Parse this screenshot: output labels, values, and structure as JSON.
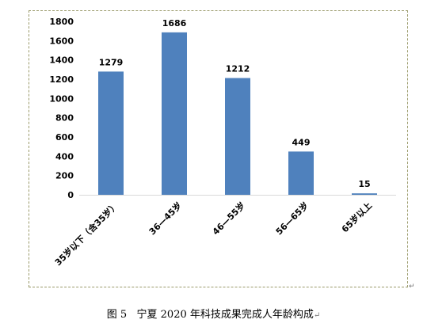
{
  "chart_data": {
    "type": "bar",
    "categories": [
      "35岁以下（含35岁）",
      "36—45岁",
      "46—55岁",
      "56—65岁",
      "65岁以上"
    ],
    "values": [
      1279,
      1686,
      1212,
      449,
      15
    ],
    "title": "",
    "xlabel": "",
    "ylabel": "",
    "ylim": [
      0,
      1800
    ],
    "yticks": [
      0,
      200,
      400,
      600,
      800,
      1000,
      1200,
      1400,
      1600,
      1800
    ],
    "grid": false,
    "legend": "none",
    "bar_color": "#4f81bd",
    "frame_color": "#9a9a6a"
  },
  "caption": {
    "figure_no": "图 5",
    "text": "宁夏 2020 年科技成果完成人年龄构成",
    "return_mark": "↵"
  },
  "frame_return_mark": "↵"
}
